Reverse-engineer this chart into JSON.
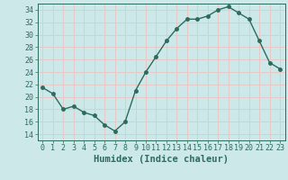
{
  "x": [
    0,
    1,
    2,
    3,
    4,
    5,
    6,
    7,
    8,
    9,
    10,
    11,
    12,
    13,
    14,
    15,
    16,
    17,
    18,
    19,
    20,
    21,
    22,
    23
  ],
  "y": [
    21.5,
    20.5,
    18.0,
    18.5,
    17.5,
    17.0,
    15.5,
    14.5,
    16.0,
    21.0,
    24.0,
    26.5,
    29.0,
    31.0,
    32.5,
    32.5,
    33.0,
    34.0,
    34.5,
    33.5,
    32.5,
    29.0,
    25.5,
    24.5
  ],
  "line_color": "#2d6b5e",
  "marker": "o",
  "marker_size": 2.5,
  "line_width": 1.0,
  "bg_color": "#cce8e8",
  "grid_color": "#e8c8c8",
  "xlabel": "Humidex (Indice chaleur)",
  "xlim": [
    -0.5,
    23.5
  ],
  "ylim": [
    13,
    35
  ],
  "yticks": [
    14,
    16,
    18,
    20,
    22,
    24,
    26,
    28,
    30,
    32,
    34
  ],
  "xticks": [
    0,
    1,
    2,
    3,
    4,
    5,
    6,
    7,
    8,
    9,
    10,
    11,
    12,
    13,
    14,
    15,
    16,
    17,
    18,
    19,
    20,
    21,
    22,
    23
  ],
  "tick_color": "#2d6b5e",
  "label_color": "#2d6b5e",
  "xlabel_fontsize": 7.5,
  "tick_fontsize": 6.0
}
